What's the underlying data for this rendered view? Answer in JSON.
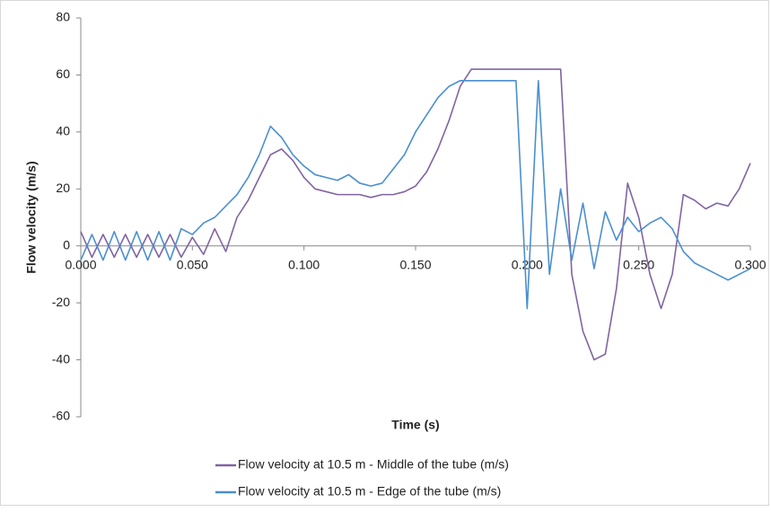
{
  "chart_data": {
    "type": "line",
    "x_label": "Time (s)",
    "y_label": "Flow velocity (m/s)",
    "x": [
      0.0,
      0.005,
      0.01,
      0.015,
      0.02,
      0.025,
      0.03,
      0.035,
      0.04,
      0.045,
      0.05,
      0.055,
      0.06,
      0.065,
      0.07,
      0.075,
      0.08,
      0.085,
      0.09,
      0.095,
      0.1,
      0.105,
      0.11,
      0.115,
      0.12,
      0.125,
      0.13,
      0.135,
      0.14,
      0.145,
      0.15,
      0.155,
      0.16,
      0.165,
      0.17,
      0.175,
      0.18,
      0.185,
      0.19,
      0.195,
      0.2,
      0.205,
      0.21,
      0.215,
      0.22,
      0.225,
      0.23,
      0.235,
      0.24,
      0.245,
      0.25,
      0.255,
      0.26,
      0.265,
      0.27,
      0.275,
      0.28,
      0.285,
      0.29,
      0.295,
      0.3
    ],
    "series": [
      {
        "name": "Flow velocity at 10.5 m - Middle of the tube (m/s)",
        "color": "#8064a2",
        "values": [
          5,
          -4,
          4,
          -4,
          4,
          -4,
          4,
          -4,
          4,
          -4,
          3,
          -3,
          6,
          -2,
          10,
          16,
          24,
          32,
          34,
          30,
          24,
          20,
          19,
          18,
          18,
          18,
          17,
          18,
          18,
          19,
          21,
          26,
          34,
          44,
          56,
          62,
          62,
          62,
          62,
          62,
          62,
          62,
          62,
          62,
          -10,
          -30,
          -40,
          -38,
          -15,
          22,
          10,
          -10,
          -22,
          -10,
          18,
          16,
          13,
          15,
          14,
          20,
          29
        ]
      },
      {
        "name": "Flow velocity at 10.5 m - Edge of the tube (m/s)",
        "color": "#4a8fd0",
        "values": [
          -5,
          4,
          -5,
          5,
          -5,
          5,
          -5,
          5,
          -5,
          6,
          4,
          8,
          10,
          14,
          18,
          24,
          32,
          42,
          38,
          32,
          28,
          25,
          24,
          23,
          25,
          22,
          21,
          22,
          27,
          32,
          40,
          46,
          52,
          56,
          58,
          58,
          58,
          58,
          58,
          58,
          -22,
          58,
          -10,
          20,
          -5,
          15,
          -8,
          12,
          2,
          10,
          5,
          8,
          10,
          6,
          -2,
          -6,
          -8,
          -10,
          -12,
          -10,
          -8
        ]
      }
    ],
    "xlim": [
      0,
      0.3
    ],
    "xticks": [
      {
        "value": 0,
        "label": "0.000"
      },
      {
        "value": 0.05,
        "label": "0.050"
      },
      {
        "value": 0.1,
        "label": "0.100"
      },
      {
        "value": 0.15,
        "label": "0.150"
      },
      {
        "value": 0.2,
        "label": "0.200"
      },
      {
        "value": 0.25,
        "label": "0.250"
      },
      {
        "value": 0.3,
        "label": "0.300"
      }
    ],
    "ylim": [
      -60,
      80
    ],
    "yticks": [
      -60,
      -40,
      -20,
      0,
      20,
      40,
      60,
      80
    ],
    "grid": false
  }
}
